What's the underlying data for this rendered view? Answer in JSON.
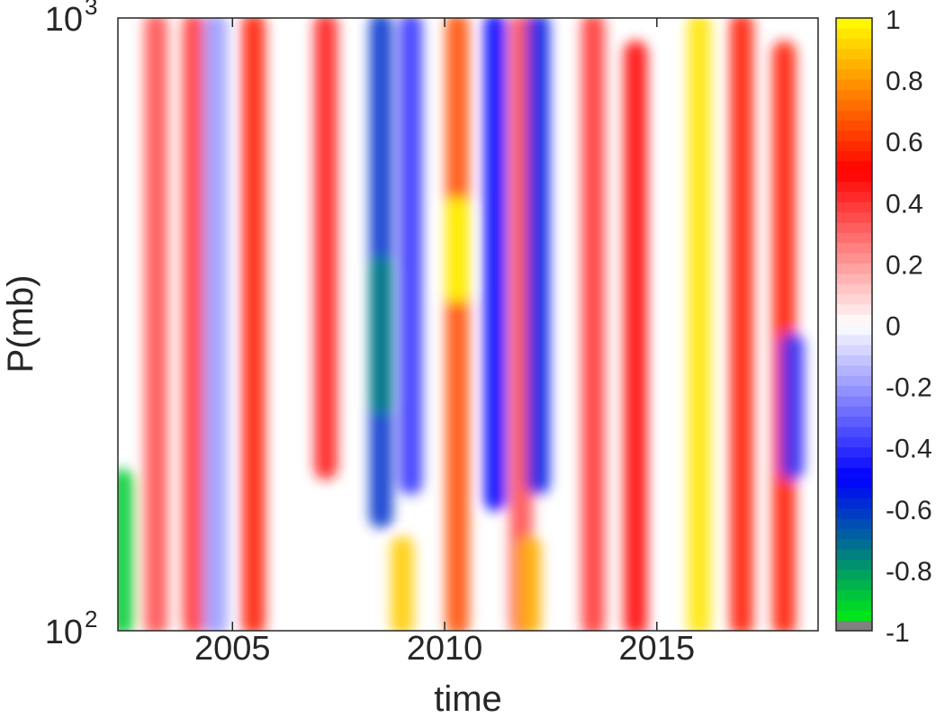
{
  "chart_data": {
    "type": "heatmap",
    "xlabel": "time",
    "ylabel": "P(mb)",
    "x_range": [
      2002.3,
      2018.8
    ],
    "y_range": [
      1000,
      100
    ],
    "y_scale": "log",
    "x_ticks": [
      {
        "value": 2005,
        "label": "2005"
      },
      {
        "value": 2010,
        "label": "2010"
      },
      {
        "value": 2015,
        "label": "2015"
      }
    ],
    "y_ticks": [
      {
        "value": 100,
        "base": "10",
        "exp": "2"
      },
      {
        "value": 1000,
        "base": "10",
        "exp": "3"
      }
    ],
    "colorbar": {
      "range": [
        -1,
        1
      ],
      "ticks": [
        {
          "value": 1,
          "label": "1"
        },
        {
          "value": 0.8,
          "label": "0.8"
        },
        {
          "value": 0.6,
          "label": "0.6"
        },
        {
          "value": 0.4,
          "label": "0.4"
        },
        {
          "value": 0.2,
          "label": "0.2"
        },
        {
          "value": 0,
          "label": "0"
        },
        {
          "value": -0.2,
          "label": "-0.2"
        },
        {
          "value": -0.4,
          "label": "-0.4"
        },
        {
          "value": -0.6,
          "label": "-0.6"
        },
        {
          "value": -0.8,
          "label": "-0.8"
        },
        {
          "value": -1,
          "label": "-1"
        }
      ],
      "colormap": [
        "#00ff00",
        "#0000ff",
        "#ffffff",
        "#ff0000",
        "#ffff00"
      ],
      "below_min_color": "#808080"
    },
    "features": [
      {
        "time": 2002.4,
        "p_top": 100,
        "p_bottom": 180,
        "value": -0.9
      },
      {
        "time": 2003.2,
        "p_top": 100,
        "p_bottom": 1000,
        "value": 0.35
      },
      {
        "time": 2004.1,
        "p_top": 100,
        "p_bottom": 1000,
        "value": 0.4
      },
      {
        "time": 2004.6,
        "p_top": 100,
        "p_bottom": 1000,
        "value": -0.2
      },
      {
        "time": 2005.5,
        "p_top": 100,
        "p_bottom": 1000,
        "value": 0.55
      },
      {
        "time": 2007.2,
        "p_top": 180,
        "p_bottom": 1000,
        "value": 0.45
      },
      {
        "time": 2008.5,
        "p_top": 150,
        "p_bottom": 1000,
        "value": -0.6
      },
      {
        "time": 2008.5,
        "p_top": 230,
        "p_bottom": 400,
        "value": -0.75
      },
      {
        "time": 2009.2,
        "p_top": 170,
        "p_bottom": 1000,
        "value": -0.4
      },
      {
        "time": 2009.0,
        "p_top": 100,
        "p_bottom": 140,
        "value": 0.9
      },
      {
        "time": 2010.3,
        "p_top": 100,
        "p_bottom": 1000,
        "value": 0.65
      },
      {
        "time": 2010.3,
        "p_top": 350,
        "p_bottom": 500,
        "value": 1.0
      },
      {
        "time": 2011.2,
        "p_top": 160,
        "p_bottom": 1000,
        "value": -0.5
      },
      {
        "time": 2011.8,
        "p_top": 100,
        "p_bottom": 1000,
        "value": 0.35
      },
      {
        "time": 2012.2,
        "p_top": 170,
        "p_bottom": 1000,
        "value": -0.55
      },
      {
        "time": 2012.0,
        "p_top": 100,
        "p_bottom": 140,
        "value": 0.85
      },
      {
        "time": 2013.5,
        "p_top": 100,
        "p_bottom": 1000,
        "value": 0.4
      },
      {
        "time": 2014.5,
        "p_top": 100,
        "p_bottom": 900,
        "value": 0.5
      },
      {
        "time": 2016.0,
        "p_top": 100,
        "p_bottom": 1000,
        "value": 0.95
      },
      {
        "time": 2017.0,
        "p_top": 100,
        "p_bottom": 1000,
        "value": 0.55
      },
      {
        "time": 2018.0,
        "p_top": 100,
        "p_bottom": 900,
        "value": 0.55
      },
      {
        "time": 2018.2,
        "p_top": 180,
        "p_bottom": 300,
        "value": -0.4
      }
    ]
  }
}
